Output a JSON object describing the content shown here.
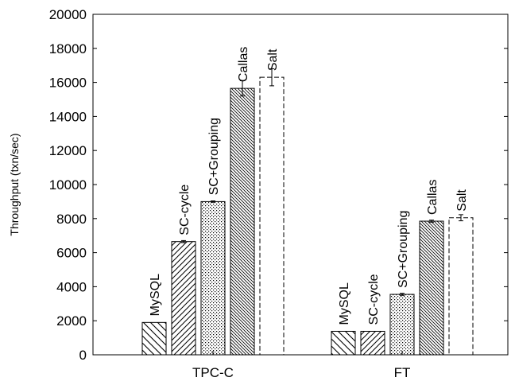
{
  "chart_data": {
    "type": "bar",
    "xlabel": "",
    "ylabel": "Throughput (txn/sec)",
    "ylim": [
      0,
      20000
    ],
    "yticks": [
      "0",
      "2000",
      "4000",
      "6000",
      "8000",
      "10000",
      "12000",
      "14000",
      "16000",
      "18000",
      "20000"
    ],
    "categories": [
      "TPC-C",
      "FT"
    ],
    "grid": false,
    "series": [
      {
        "name": "MySQL",
        "values": [
          1900,
          1380
        ],
        "errors": [
          0,
          0
        ],
        "pattern": "diag-back-wide"
      },
      {
        "name": "SC-cycle",
        "values": [
          6650,
          1380
        ],
        "errors": [
          60,
          0
        ],
        "pattern": "diag-forward"
      },
      {
        "name": "SC+Grouping",
        "values": [
          9000,
          3550
        ],
        "errors": [
          40,
          60
        ],
        "pattern": "dots"
      },
      {
        "name": "Callas",
        "values": [
          15650,
          7850
        ],
        "errors": [
          450,
          60
        ],
        "pattern": "diag-dense"
      },
      {
        "name": "Salt",
        "values": [
          16300,
          8050
        ],
        "errors": [
          500,
          180
        ],
        "pattern": "dashed-empty"
      }
    ]
  }
}
